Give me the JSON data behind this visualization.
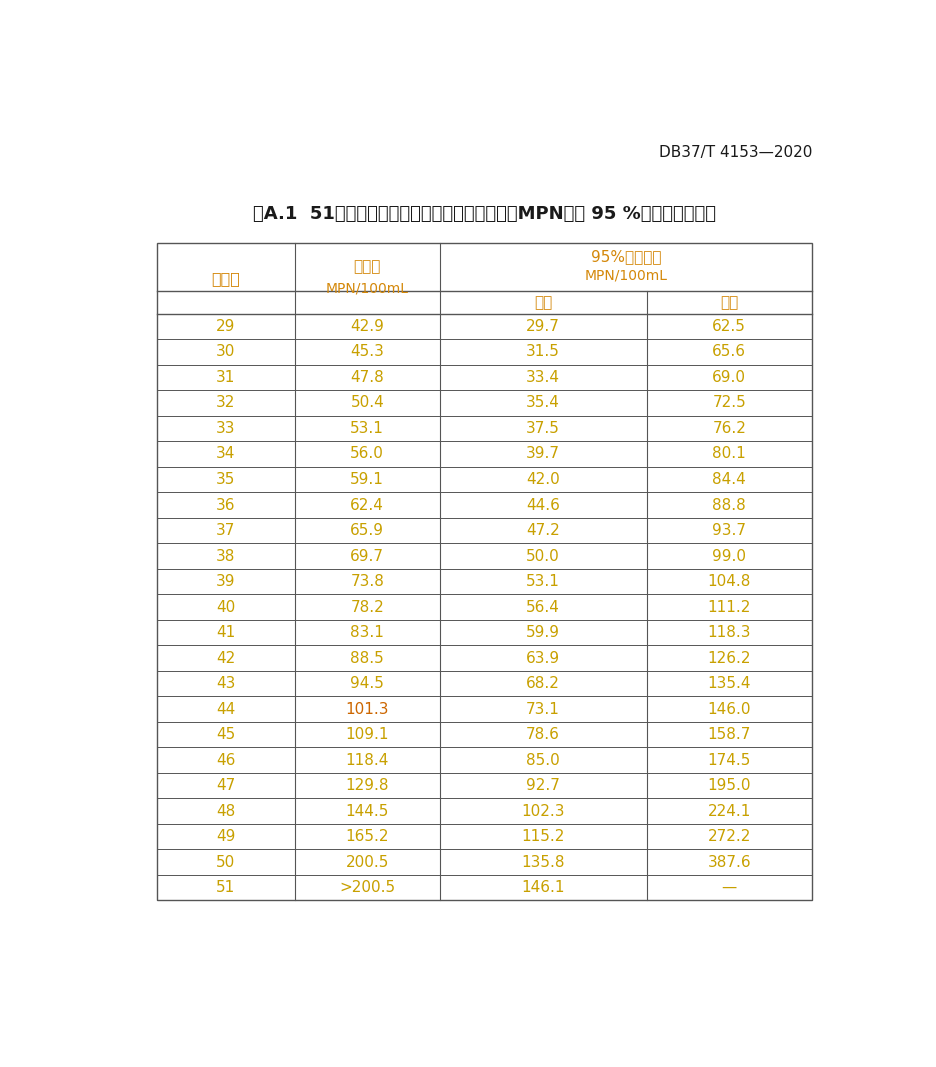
{
  "doc_ref": "DB37/T 4153—2020",
  "title": "表A.1  51孔定量盘法不同阳性结果的最可能数（MPN）及 95 %可信范围（续）",
  "header_col1": "阳性数",
  "header_col2_line1": "肠球菌",
  "header_col2_line2": "MPN/100mL",
  "header_col3_line1": "95%置信范围",
  "header_col3_line2": "MPN/100mL",
  "header_lower": "下限",
  "header_upper": "上限",
  "rows": [
    [
      "29",
      "42.9",
      "29.7",
      "62.5"
    ],
    [
      "30",
      "45.3",
      "31.5",
      "65.6"
    ],
    [
      "31",
      "47.8",
      "33.4",
      "69.0"
    ],
    [
      "32",
      "50.4",
      "35.4",
      "72.5"
    ],
    [
      "33",
      "53.1",
      "37.5",
      "76.2"
    ],
    [
      "34",
      "56.0",
      "39.7",
      "80.1"
    ],
    [
      "35",
      "59.1",
      "42.0",
      "84.4"
    ],
    [
      "36",
      "62.4",
      "44.6",
      "88.8"
    ],
    [
      "37",
      "65.9",
      "47.2",
      "93.7"
    ],
    [
      "38",
      "69.7",
      "50.0",
      "99.0"
    ],
    [
      "39",
      "73.8",
      "53.1",
      "104.8"
    ],
    [
      "40",
      "78.2",
      "56.4",
      "111.2"
    ],
    [
      "41",
      "83.1",
      "59.9",
      "118.3"
    ],
    [
      "42",
      "88.5",
      "63.9",
      "126.2"
    ],
    [
      "43",
      "94.5",
      "68.2",
      "135.4"
    ],
    [
      "44",
      "101.3",
      "73.1",
      "146.0"
    ],
    [
      "45",
      "109.1",
      "78.6",
      "158.7"
    ],
    [
      "46",
      "118.4",
      "85.0",
      "174.5"
    ],
    [
      "47",
      "129.8",
      "92.7",
      "195.0"
    ],
    [
      "48",
      "144.5",
      "102.3",
      "224.1"
    ],
    [
      "49",
      "165.2",
      "115.2",
      "272.2"
    ],
    [
      "50",
      "200.5",
      "135.8",
      "387.6"
    ],
    [
      "51",
      ">200.5",
      "146.1",
      "—"
    ]
  ],
  "col_color": "#d4880a",
  "data_color": "#c8a000",
  "title_color": "#1a1a1a",
  "doc_color": "#1a1a1a",
  "line_color": "#555555",
  "bg_color": "#ffffff",
  "highlight_row": 15,
  "highlight_color": "#cc6600"
}
